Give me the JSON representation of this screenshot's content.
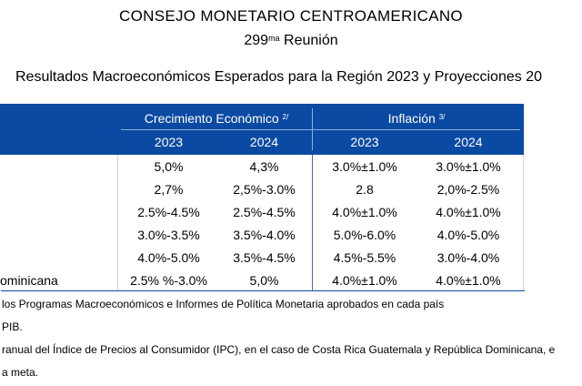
{
  "title": "CONSEJO MONETARIO CENTROAMERICANO",
  "meeting": {
    "number": "299",
    "ordinal": "ma",
    "word": "Reunión"
  },
  "results_title": "Resultados Macroeconómicos Esperados para la Región 2023 y Proyecciones 20",
  "table": {
    "group_growth": "Crecimiento Económico",
    "group_growth_note": "2/",
    "group_inflation": "Inflación",
    "group_inflation_note": "3/",
    "years": [
      "2023",
      "2024",
      "2023",
      "2024"
    ],
    "rows": [
      {
        "label": "",
        "values": [
          "5,0%",
          "4,3%",
          "3.0%±1.0%",
          "3.0%±1.0%"
        ]
      },
      {
        "label": "",
        "values": [
          "2,7%",
          "2,5%-3.0%",
          "2.8",
          "2,0%-2.5%"
        ]
      },
      {
        "label": "",
        "values": [
          "2.5%-4.5%",
          "2.5%-4.5%",
          "4.0%±1.0%",
          "4.0%±1.0%"
        ]
      },
      {
        "label": "",
        "values": [
          "3.0%-3.5%",
          "3.5%-4.0%",
          "5.0%-6.0%",
          "4.0%-5.0%"
        ]
      },
      {
        "label": "",
        "values": [
          "4.0%-5.0%",
          "3.5%-4.5%",
          "4.5%-5.5%",
          "3.0%-4.0%"
        ]
      },
      {
        "label": "ominicana",
        "values": [
          "2.5% %-3.0%",
          "5,0%",
          "4.0%±1.0%",
          "4.0%±1.0%"
        ]
      }
    ]
  },
  "footnotes": [
    "los Programas Macroeconómicos e Informes de Política Monetaria aprobados en cada país",
    "PIB.",
    "ranual del Índice de Precios al Consumidor (IPC), en el caso de Costa Rica Guatemala y República Dominicana, e",
    "a meta."
  ],
  "colors": {
    "header_bg": "#0b4aa2",
    "header_text": "#ffffff"
  }
}
